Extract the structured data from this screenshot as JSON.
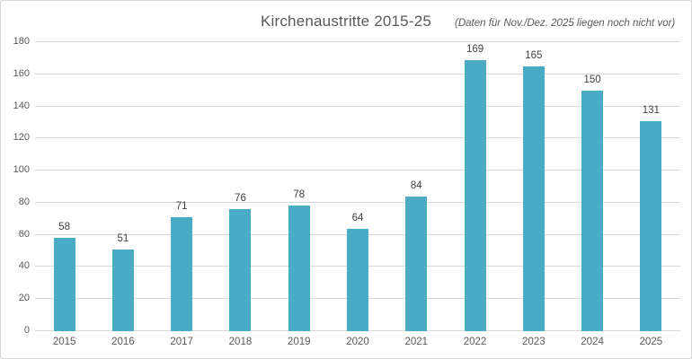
{
  "chart": {
    "title": "Kirchenaustritte 2015-25",
    "note": "(Daten für Nov./Dez. 2025 liegen noch nicht vor)"
  },
  "chart_data": {
    "type": "bar",
    "title": "Kirchenaustritte 2015-25",
    "subtitle": "(Daten für Nov./Dez. 2025 liegen noch nicht vor)",
    "categories": [
      "2015",
      "2016",
      "2017",
      "2018",
      "2019",
      "2020",
      "2021",
      "2022",
      "2023",
      "2024",
      "2025"
    ],
    "values": [
      58,
      51,
      71,
      76,
      78,
      64,
      84,
      169,
      165,
      150,
      131
    ],
    "xlabel": "",
    "ylabel": "",
    "ylim": [
      0,
      180
    ],
    "ytick_step": 20,
    "yticks": [
      0,
      20,
      40,
      60,
      80,
      100,
      120,
      140,
      160,
      180
    ],
    "grid": true,
    "legend": false,
    "data_labels": true,
    "colors": {
      "bar": "#4aabc5",
      "gridline": "#d9d9d9",
      "axis_text": "#595959",
      "data_label": "#404040",
      "title_text": "#595959",
      "border": "#d7d7d7",
      "background": "#ffffff"
    }
  }
}
